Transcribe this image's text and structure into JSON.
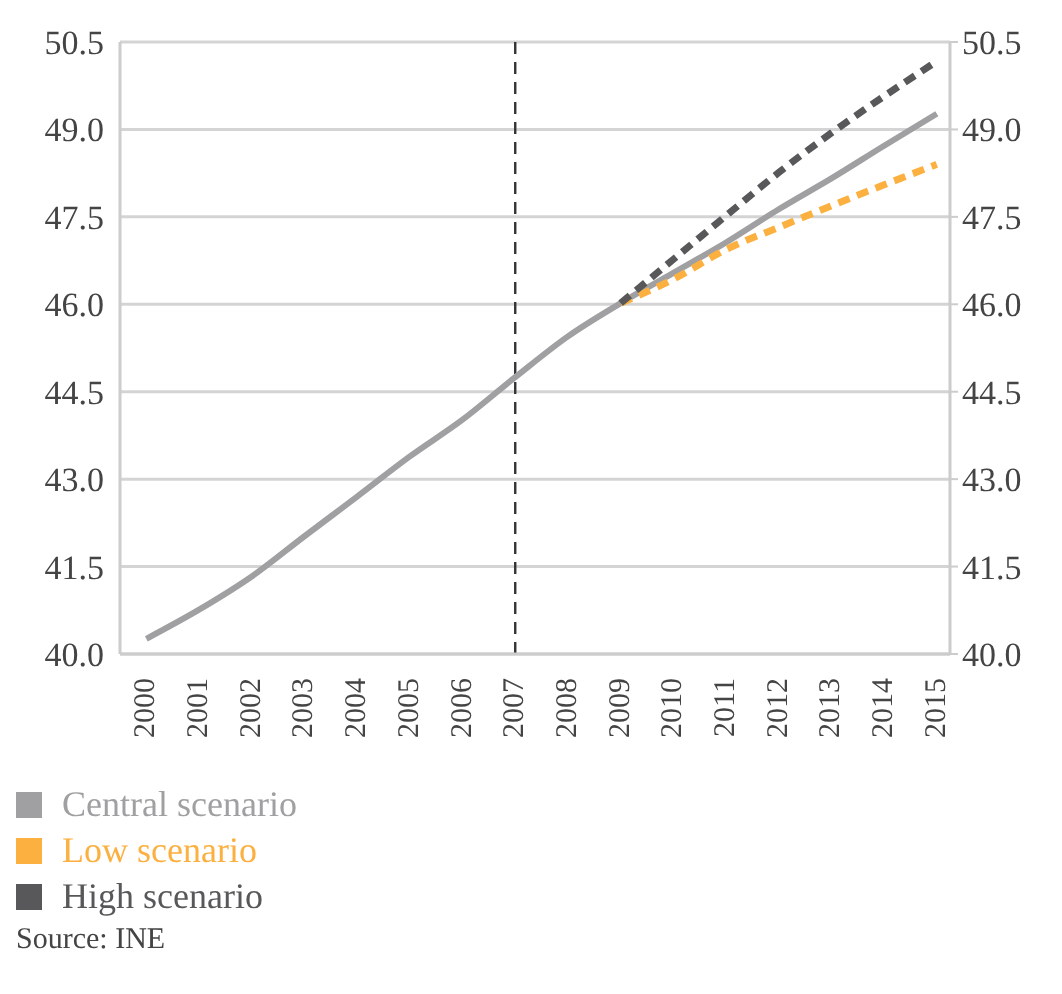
{
  "chart_data": {
    "type": "line",
    "x": [
      2000,
      2001,
      2002,
      2003,
      2004,
      2005,
      2006,
      2007,
      2008,
      2009,
      2010,
      2011,
      2012,
      2013,
      2014,
      2015
    ],
    "series": [
      {
        "name": "Central scenario",
        "color": "#a0a0a2",
        "line_style": "solid",
        "values": [
          40.26,
          40.76,
          41.33,
          42.02,
          42.7,
          43.39,
          44.02,
          44.75,
          45.45,
          46.02,
          46.54,
          47.06,
          47.63,
          48.16,
          48.72,
          49.27
        ]
      },
      {
        "name": "Low scenario",
        "color": "#fbb040",
        "line_style": "dashed",
        "values": [
          null,
          null,
          null,
          null,
          null,
          null,
          null,
          null,
          null,
          46.02,
          46.43,
          46.94,
          47.32,
          47.69,
          48.05,
          48.4
        ]
      },
      {
        "name": "High scenario",
        "color": "#58585a",
        "line_style": "dashed",
        "values": [
          null,
          null,
          null,
          null,
          null,
          null,
          null,
          null,
          null,
          46.02,
          46.77,
          47.52,
          48.26,
          48.94,
          49.57,
          50.17
        ]
      }
    ],
    "xlim": [
      1999.5,
      2015.25
    ],
    "xticks": [
      2000,
      2001,
      2002,
      2003,
      2004,
      2005,
      2006,
      2007,
      2008,
      2009,
      2010,
      2011,
      2012,
      2013,
      2014,
      2015
    ],
    "ylim": [
      40,
      50.5
    ],
    "yticks": [
      {
        "value": 40,
        "label": "40.0"
      },
      41.5,
      {
        "value": 43,
        "label": "43.0"
      },
      44.5,
      {
        "value": 46,
        "label": "46.0"
      },
      47.5,
      {
        "value": 49,
        "label": "49.0"
      },
      50.5
    ],
    "y2lim": [
      40,
      50.5
    ],
    "y2ticks": [
      {
        "value": 40,
        "label": "40.0"
      },
      41.5,
      {
        "value": 43,
        "label": "43.0"
      },
      44.5,
      {
        "value": 46,
        "label": "46.0"
      },
      47.5,
      {
        "value": 49,
        "label": "49.0"
      },
      50.5
    ],
    "ref_lines": [
      {
        "axis": "x",
        "value": 2007,
        "color": "#333333",
        "line_style": "dashed"
      }
    ],
    "grid": "y",
    "legend": "bottom left",
    "marker": "none",
    "annotations": [
      "Source: INE"
    ]
  }
}
